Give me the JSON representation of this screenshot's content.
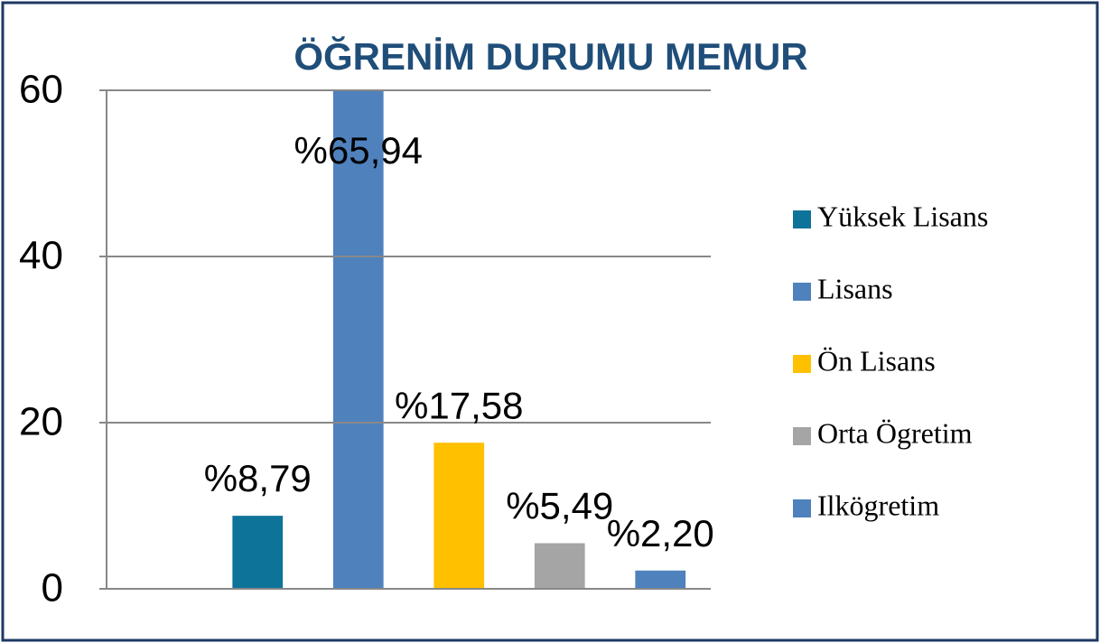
{
  "chart_data": {
    "type": "bar",
    "title": "ÖĞRENİM DURUMU MEMUR",
    "series": [
      {
        "name": "Yüksek Lisans",
        "color": "#0e7399",
        "values": [
          8.79
        ],
        "value_labels": [
          "%8,79"
        ]
      },
      {
        "name": "Lisans",
        "color": "#4f81bd",
        "values": [
          65.94
        ],
        "value_labels": [
          "%65,94"
        ]
      },
      {
        "name": "Ön Lisans",
        "color": "#ffc000",
        "values": [
          17.58
        ],
        "value_labels": [
          "%17,58"
        ]
      },
      {
        "name": "Orta Ögretim",
        "color": "#a5a5a5",
        "values": [
          5.49
        ],
        "value_labels": [
          "%5,49"
        ]
      },
      {
        "name": "Ilkögretim",
        "color": "#4f81bd",
        "values": [
          2.2
        ],
        "value_labels": [
          "%2,20"
        ]
      }
    ],
    "ylim": [
      0,
      60
    ],
    "yticks": [
      0,
      20,
      40,
      60
    ],
    "grid": true,
    "legend": "right"
  }
}
